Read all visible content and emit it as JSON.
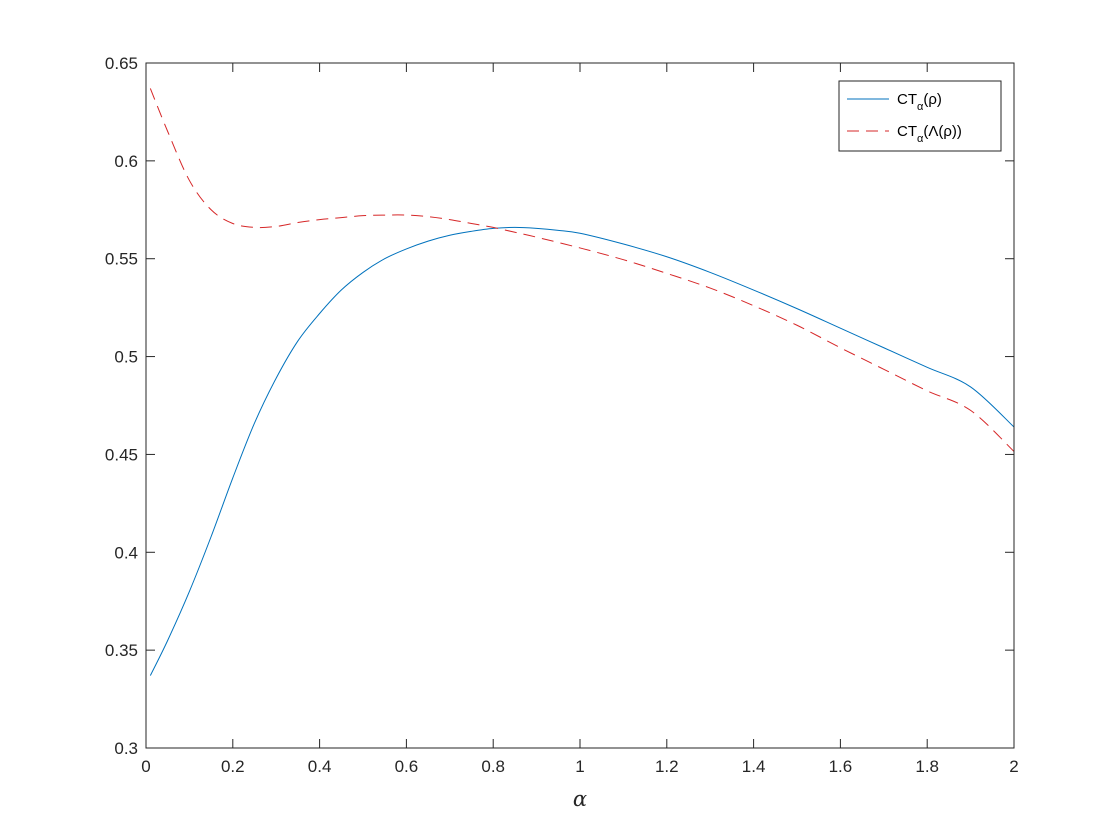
{
  "chart_data": {
    "type": "line",
    "title": "",
    "xlabel": "α",
    "ylabel": "",
    "xlim": [
      0,
      2
    ],
    "ylim": [
      0.3,
      0.65
    ],
    "xticks": [
      0,
      0.2,
      0.4,
      0.6,
      0.8,
      1,
      1.2,
      1.4,
      1.6,
      1.8,
      2
    ],
    "xtick_labels": [
      "0",
      "0.2",
      "0.4",
      "0.6",
      "0.8",
      "1",
      "1.2",
      "1.4",
      "1.6",
      "1.8",
      "2"
    ],
    "yticks": [
      0.3,
      0.35,
      0.4,
      0.45,
      0.5,
      0.55,
      0.6,
      0.65
    ],
    "ytick_labels": [
      "0.3",
      "0.35",
      "0.4",
      "0.45",
      "0.5",
      "0.55",
      "0.6",
      "0.65"
    ],
    "grid": false,
    "legend_position": "top-right",
    "series": [
      {
        "name": "CT_α(ρ)",
        "legend_main": "CT",
        "legend_sub": "α",
        "legend_tail": "(ρ)",
        "color": "#0072bd",
        "line_style": "solid",
        "x": [
          0.01,
          0.05,
          0.1,
          0.15,
          0.2,
          0.25,
          0.3,
          0.35,
          0.4,
          0.45,
          0.5,
          0.55,
          0.6,
          0.65,
          0.7,
          0.75,
          0.8,
          0.85,
          0.9,
          0.95,
          1.0,
          1.1,
          1.2,
          1.3,
          1.4,
          1.5,
          1.6,
          1.7,
          1.8,
          1.9,
          2.0
        ],
        "y": [
          0.337,
          0.355,
          0.38,
          0.408,
          0.438,
          0.466,
          0.489,
          0.508,
          0.522,
          0.534,
          0.543,
          0.55,
          0.555,
          0.559,
          0.562,
          0.564,
          0.5655,
          0.566,
          0.5655,
          0.5645,
          0.563,
          0.5575,
          0.551,
          0.543,
          0.534,
          0.5245,
          0.5145,
          0.5045,
          0.4945,
          0.4845,
          0.464
        ]
      },
      {
        "name": "CT_α(Λ(ρ))",
        "legend_main": "CT",
        "legend_sub": "α",
        "legend_tail": "(Λ(ρ))",
        "color": "#d62728",
        "line_style": "dashed",
        "x": [
          0.01,
          0.05,
          0.1,
          0.15,
          0.2,
          0.25,
          0.3,
          0.35,
          0.4,
          0.45,
          0.5,
          0.55,
          0.6,
          0.65,
          0.7,
          0.75,
          0.8,
          0.85,
          0.9,
          1.0,
          1.1,
          1.2,
          1.3,
          1.4,
          1.5,
          1.6,
          1.7,
          1.8,
          1.9,
          2.0
        ],
        "y": [
          0.637,
          0.615,
          0.59,
          0.575,
          0.568,
          0.566,
          0.5665,
          0.5685,
          0.57,
          0.571,
          0.572,
          0.5723,
          0.5723,
          0.5715,
          0.57,
          0.568,
          0.566,
          0.5635,
          0.561,
          0.5555,
          0.5495,
          0.5425,
          0.535,
          0.526,
          0.516,
          0.5045,
          0.4935,
          0.4825,
          0.4725,
          0.4515
        ]
      }
    ]
  }
}
